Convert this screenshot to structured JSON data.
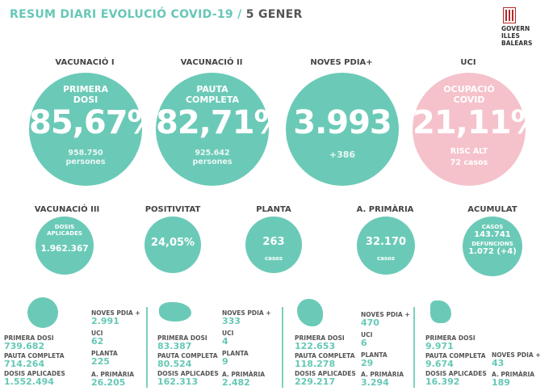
{
  "header": {
    "title_a": "RESUM DIARI EVOLUCIÓ COVID-19 /",
    "title_b": "5 GENER",
    "logo_l1": "GOVERN",
    "logo_l2": "ILLES",
    "logo_l3": "BALEARS"
  },
  "big": [
    {
      "caption": "VACUNACIÓ I",
      "label1": "PRIMERA",
      "label2": "DOSI",
      "value": "85,67%",
      "sub1": "958.750",
      "sub2": "persones"
    },
    {
      "caption": "VACUNACIÓ II",
      "label1": "PAUTA",
      "label2": "COMPLETA",
      "value": "82,71%",
      "sub1": "925.642",
      "sub2": "persones"
    },
    {
      "caption": "NOVES PDIA+",
      "value": "3.993",
      "sub1": "+386"
    },
    {
      "caption": "UCI",
      "label1": "OCUPACIÓ",
      "label2": "COVID",
      "value": "21,11%",
      "sub1": "RISC ALT",
      "sub2": "72 casos"
    }
  ],
  "small": [
    {
      "caption": "VACUNACIÓ III",
      "top1": "DOSIS",
      "top2": "APLICADES",
      "value": "1.962.367"
    },
    {
      "caption": "POSITIVITAT",
      "value": "24,05%"
    },
    {
      "caption": "PLANTA",
      "value": "263",
      "bottom": "casos"
    },
    {
      "caption": "A. PRIMÀRIA",
      "value": "32.170",
      "bottom": "casos"
    },
    {
      "caption": "ACUMULAT",
      "top1": "CASOS",
      "v1": "143.741",
      "top2": "DEFUNCIONS",
      "v2": "1.072 (+4)"
    }
  ],
  "islands": [
    {
      "primera_lbl": "PRIMERA DOSI",
      "primera": "739.682",
      "pauta_lbl": "PAUTA COMPLETA",
      "pauta": "714.264",
      "dosis_lbl": "DOSIS APLICADES",
      "dosis": "1.552.494",
      "noves_lbl": "NOVES PDIA +",
      "noves": "2.991",
      "uci_lbl": "UCI",
      "uci": "62",
      "planta_lbl": "PLANTA",
      "planta": "225",
      "ap_lbl": "A. PRIMÀRIA",
      "ap": "26.205"
    },
    {
      "primera_lbl": "PRIMERA DOSI",
      "primera": "83.387",
      "pauta_lbl": "PAUTA COMPLETA",
      "pauta": "80.524",
      "dosis_lbl": "DOSIS APLICADES",
      "dosis": "162.313",
      "noves_lbl": "NOVES PDIA +",
      "noves": "333",
      "uci_lbl": "UCI",
      "uci": "4",
      "planta_lbl": "PLANTA",
      "planta": "9",
      "ap_lbl": "A. PRIMÀRIA",
      "ap": "2.482"
    },
    {
      "primera_lbl": "PRIMERA DOSI",
      "primera": "122.653",
      "pauta_lbl": "PAUTA COMPLETA",
      "pauta": "118.278",
      "dosis_lbl": "DOSIS APLICADES",
      "dosis": "229.217",
      "noves_lbl": "NOVES PDIA +",
      "noves": "470",
      "uci_lbl": "UCI",
      "uci": "6",
      "planta_lbl": "PLANTA",
      "planta": "29",
      "ap_lbl": "A. PRIMÀRIA",
      "ap": "3.294"
    },
    {
      "primera_lbl": "PRIMERA DOSI",
      "primera": "9.971",
      "pauta_lbl": "PAUTA COMPLETA",
      "pauta": "9.674",
      "dosis_lbl": "DOSIS APLICADES",
      "dosis": "16.392",
      "noves_lbl": "NOVES PDIA +",
      "noves": "43",
      "ap_lbl": "A. PRIMÀRIA",
      "ap": "189"
    }
  ]
}
